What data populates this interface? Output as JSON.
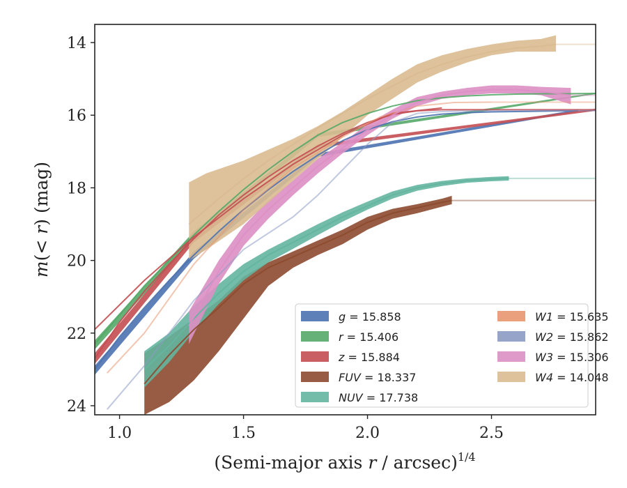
{
  "chart_data": {
    "type": "line",
    "title": "",
    "xlabel": "(Semi-major axis r / arcsec)^{1/4}",
    "ylabel": "m(< r) (mag)",
    "xlim": [
      0.9,
      2.92
    ],
    "ylim": [
      24.25,
      13.5
    ],
    "y_inverted": true,
    "xticks": [
      1.0,
      1.5,
      2.0,
      2.5
    ],
    "yticks": [
      14,
      16,
      18,
      20,
      22,
      24
    ],
    "grid": false,
    "legend_placement": "lower-right",
    "legend_columns": 2,
    "series": [
      {
        "name": "g = 15.858",
        "color": "#4c72b0",
        "x": [
          0.9,
          1.0,
          1.1,
          1.2,
          1.3,
          1.4,
          1.5,
          1.6,
          1.7,
          1.8,
          1.9,
          2.0,
          2.1,
          2.2,
          2.3,
          2.4,
          2.5,
          2.6,
          2.7,
          2.8,
          2.85
        ],
        "y": [
          23.0,
          22.1,
          21.3,
          20.55,
          19.85,
          19.2,
          18.6,
          18.05,
          17.55,
          17.1,
          16.7,
          16.4,
          16.18,
          16.05,
          15.97,
          15.93,
          15.91,
          15.9,
          15.89,
          15.88,
          15.87
        ],
        "band": [
          [
            0.9,
            23.15,
            22.9
          ],
          [
            1.3,
            19.95,
            19.75
          ],
          [
            1.8,
            17.15,
            17.05
          ],
          [
            2.85,
            15.9,
            15.84
          ]
        ],
        "faint_x_end": 2.92
      },
      {
        "name": "r = 15.406",
        "color": "#55a868",
        "x": [
          0.9,
          1.0,
          1.1,
          1.2,
          1.3,
          1.4,
          1.5,
          1.6,
          1.7,
          1.8,
          1.9,
          2.0,
          2.1,
          2.2,
          2.3,
          2.4,
          2.5,
          2.6,
          2.7,
          2.8,
          2.92
        ],
        "y": [
          22.3,
          21.5,
          20.7,
          20.0,
          19.3,
          18.65,
          18.05,
          17.5,
          17.0,
          16.55,
          16.2,
          15.95,
          15.75,
          15.6,
          15.52,
          15.47,
          15.44,
          15.42,
          15.41,
          15.41,
          15.4
        ],
        "band": [
          [
            0.9,
            22.45,
            22.2
          ],
          [
            1.3,
            19.4,
            19.2
          ],
          [
            1.8,
            16.6,
            16.5
          ],
          [
            2.92,
            15.42,
            15.38
          ]
        ],
        "faint_x_end": 2.92
      },
      {
        "name": "z = 15.884",
        "color": "#c44e52",
        "x": [
          0.9,
          1.0,
          1.1,
          1.2,
          1.3,
          1.4,
          1.5,
          1.6,
          1.7,
          1.8,
          1.9,
          2.0,
          2.1,
          2.2,
          2.3,
          2.4,
          2.5,
          2.6,
          2.7,
          2.8,
          2.92
        ],
        "y": [
          22.7,
          21.7,
          20.85,
          20.1,
          19.4,
          18.75,
          18.2,
          17.7,
          17.25,
          16.85,
          16.5,
          16.2,
          15.98,
          15.88,
          15.85,
          15.85,
          15.85,
          15.85,
          15.85,
          15.85,
          15.85
        ],
        "band": [
          [
            0.9,
            22.85,
            22.55
          ],
          [
            1.3,
            19.5,
            19.3
          ],
          [
            1.8,
            16.9,
            16.8
          ],
          [
            2.92,
            15.88,
            15.82
          ]
        ],
        "extra_line": {
          "x": [
            0.9,
            1.1,
            1.3,
            1.5,
            1.7,
            1.9,
            2.1,
            2.3
          ],
          "y": [
            21.9,
            20.55,
            19.35,
            18.3,
            17.35,
            16.55,
            15.95,
            15.8
          ]
        },
        "faint_x_end": 2.92
      },
      {
        "name": "FUV = 18.337",
        "color": "#8c4a2f",
        "x": [
          1.1,
          1.2,
          1.3,
          1.4,
          1.5,
          1.6,
          1.7,
          1.8,
          1.9,
          2.0,
          2.1,
          2.2,
          2.3,
          2.34
        ],
        "y": [
          23.4,
          22.6,
          21.9,
          21.3,
          20.65,
          20.2,
          19.9,
          19.6,
          19.3,
          18.95,
          18.7,
          18.55,
          18.4,
          18.35
        ],
        "band": [
          [
            1.1,
            24.25,
            22.55
          ],
          [
            1.2,
            23.9,
            22.1
          ],
          [
            1.3,
            23.3,
            21.6
          ],
          [
            1.4,
            22.5,
            21.1
          ],
          [
            1.5,
            21.6,
            20.45
          ],
          [
            1.6,
            20.7,
            20.05
          ],
          [
            1.7,
            20.2,
            19.75
          ],
          [
            1.8,
            19.85,
            19.45
          ],
          [
            1.9,
            19.55,
            19.15
          ],
          [
            2.0,
            19.15,
            18.8
          ],
          [
            2.1,
            18.85,
            18.58
          ],
          [
            2.2,
            18.7,
            18.45
          ],
          [
            2.3,
            18.52,
            18.3
          ],
          [
            2.34,
            18.45,
            18.22
          ]
        ],
        "faint_x_end": 2.92
      },
      {
        "name": "NUV = 17.738",
        "color": "#64b5a0",
        "x": [
          1.1,
          1.2,
          1.3,
          1.4,
          1.5,
          1.6,
          1.7,
          1.8,
          1.9,
          2.0,
          2.1,
          2.2,
          2.3,
          2.4,
          2.5,
          2.57
        ],
        "y": [
          23.0,
          22.35,
          21.6,
          20.9,
          20.3,
          19.85,
          19.5,
          19.15,
          18.8,
          18.5,
          18.2,
          18.0,
          17.88,
          17.8,
          17.76,
          17.74
        ],
        "band": [
          [
            1.1,
            23.5,
            22.5
          ],
          [
            1.2,
            22.8,
            22.0
          ],
          [
            1.3,
            21.95,
            21.25
          ],
          [
            1.4,
            21.2,
            20.65
          ],
          [
            1.5,
            20.55,
            20.1
          ],
          [
            1.6,
            20.05,
            19.7
          ],
          [
            1.7,
            19.68,
            19.35
          ],
          [
            1.8,
            19.3,
            19.0
          ],
          [
            1.9,
            18.93,
            18.67
          ],
          [
            2.0,
            18.6,
            18.38
          ],
          [
            2.1,
            18.3,
            18.1
          ],
          [
            2.2,
            18.08,
            17.92
          ],
          [
            2.3,
            17.95,
            17.81
          ],
          [
            2.4,
            17.86,
            17.74
          ],
          [
            2.5,
            17.82,
            17.7
          ],
          [
            2.57,
            17.8,
            17.68
          ]
        ],
        "faint_x_end": 2.92
      },
      {
        "name": "W1 = 15.635",
        "color": "#e8956f",
        "x": [
          0.95,
          1.1,
          1.3,
          1.5,
          1.7,
          1.9,
          2.05,
          2.2,
          2.35,
          2.5
        ],
        "y": [
          23.1,
          22.0,
          20.1,
          18.6,
          17.45,
          16.6,
          16.05,
          15.75,
          15.65,
          15.64
        ],
        "faint_x_end": 2.92
      },
      {
        "name": "W2 = 15.862",
        "color": "#8c9ac4",
        "x": [
          0.95,
          1.1,
          1.3,
          1.5,
          1.7,
          1.8,
          1.9,
          2.0,
          2.1,
          2.2,
          2.3,
          2.5
        ],
        "y": [
          24.1,
          22.9,
          21.1,
          19.7,
          18.8,
          18.2,
          17.5,
          16.8,
          16.2,
          15.95,
          15.9,
          15.87
        ],
        "faint_x_end": 2.92
      },
      {
        "name": "W3 = 15.306",
        "color": "#dd8fc4",
        "x": [
          1.28,
          1.4,
          1.5,
          1.6,
          1.7,
          1.8,
          1.9,
          2.0,
          2.1,
          2.2,
          2.3,
          2.4,
          2.5,
          2.6,
          2.7,
          2.82
        ],
        "y": [
          21.8,
          20.3,
          19.3,
          18.6,
          18.0,
          17.4,
          16.9,
          16.4,
          16.0,
          15.65,
          15.45,
          15.35,
          15.3,
          15.3,
          15.35,
          15.45
        ],
        "band": [
          [
            1.28,
            22.3,
            21.4
          ],
          [
            1.4,
            20.65,
            20.0
          ],
          [
            1.5,
            19.6,
            19.05
          ],
          [
            1.6,
            18.85,
            18.35
          ],
          [
            1.7,
            18.2,
            17.8
          ],
          [
            1.8,
            17.6,
            17.2
          ],
          [
            1.9,
            17.05,
            16.75
          ],
          [
            2.0,
            16.55,
            16.25
          ],
          [
            2.1,
            16.1,
            15.85
          ],
          [
            2.2,
            15.75,
            15.5
          ],
          [
            2.3,
            15.55,
            15.35
          ],
          [
            2.4,
            15.45,
            15.25
          ],
          [
            2.5,
            15.4,
            15.18
          ],
          [
            2.6,
            15.4,
            15.18
          ],
          [
            2.7,
            15.45,
            15.22
          ],
          [
            2.82,
            15.7,
            15.25
          ]
        ],
        "faint_x_end": 2.92
      },
      {
        "name": "W4 = 14.048",
        "color": "#d9bb91",
        "x": [
          1.28,
          1.4,
          1.5,
          1.6,
          1.7,
          1.8,
          1.9,
          2.0,
          2.1,
          2.2,
          2.3,
          2.4,
          2.5,
          2.6,
          2.7,
          2.76
        ],
        "y": [
          19.0,
          18.3,
          17.75,
          17.25,
          16.8,
          16.35,
          15.95,
          15.55,
          15.2,
          14.85,
          14.6,
          14.4,
          14.25,
          14.15,
          14.1,
          14.05
        ],
        "band": [
          [
            1.28,
            20.0,
            17.85
          ],
          [
            1.35,
            19.7,
            17.6
          ],
          [
            1.5,
            19.0,
            17.25
          ],
          [
            1.6,
            18.4,
            16.95
          ],
          [
            1.7,
            17.8,
            16.65
          ],
          [
            1.8,
            17.2,
            16.3
          ],
          [
            1.9,
            16.6,
            15.9
          ],
          [
            2.0,
            16.0,
            15.45
          ],
          [
            2.1,
            15.55,
            15.0
          ],
          [
            2.2,
            15.1,
            14.6
          ],
          [
            2.3,
            14.8,
            14.35
          ],
          [
            2.4,
            14.55,
            14.18
          ],
          [
            2.5,
            14.35,
            14.05
          ],
          [
            2.6,
            14.25,
            13.95
          ],
          [
            2.7,
            14.25,
            13.9
          ],
          [
            2.76,
            14.25,
            13.8
          ]
        ],
        "faint_x_end": 2.92
      }
    ]
  }
}
